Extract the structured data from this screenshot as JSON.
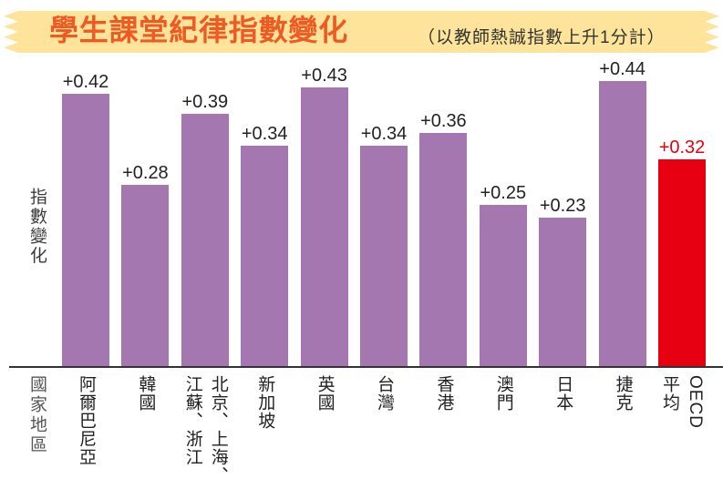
{
  "chart_data": {
    "type": "bar",
    "title": "學生課堂紀律指數變化",
    "subtitle": "（以教師熱誠指數上升1分計）",
    "ylabel": "指數變化",
    "xlabel": "國家地區",
    "categories": [
      "阿爾巴尼亞",
      "韓國",
      "北京、上海、江蘇、浙江",
      "新加坡",
      "英國",
      "台灣",
      "香港",
      "澳門",
      "日本",
      "捷克",
      "OECD平均"
    ],
    "values": [
      0.42,
      0.28,
      0.39,
      0.34,
      0.43,
      0.34,
      0.36,
      0.25,
      0.23,
      0.44,
      0.32
    ],
    "data_labels": [
      "+0.42",
      "+0.28",
      "+0.39",
      "+0.34",
      "+0.43",
      "+0.34",
      "+0.36",
      "+0.25",
      "+0.23",
      "+0.44",
      "+0.32"
    ],
    "ylim": [
      0,
      0.5
    ],
    "grid": false,
    "bar_colors": [
      "#a477b1",
      "#a477b1",
      "#a477b1",
      "#a477b1",
      "#a477b1",
      "#a477b1",
      "#a477b1",
      "#a477b1",
      "#a477b1",
      "#a477b1",
      "#e60012"
    ],
    "label_colors": [
      "#222222",
      "#222222",
      "#222222",
      "#222222",
      "#222222",
      "#222222",
      "#222222",
      "#222222",
      "#222222",
      "#222222",
      "#e60012"
    ],
    "colors": {
      "title": "#ef5a23",
      "banner": "#fde49a",
      "axis": "#333333"
    }
  }
}
